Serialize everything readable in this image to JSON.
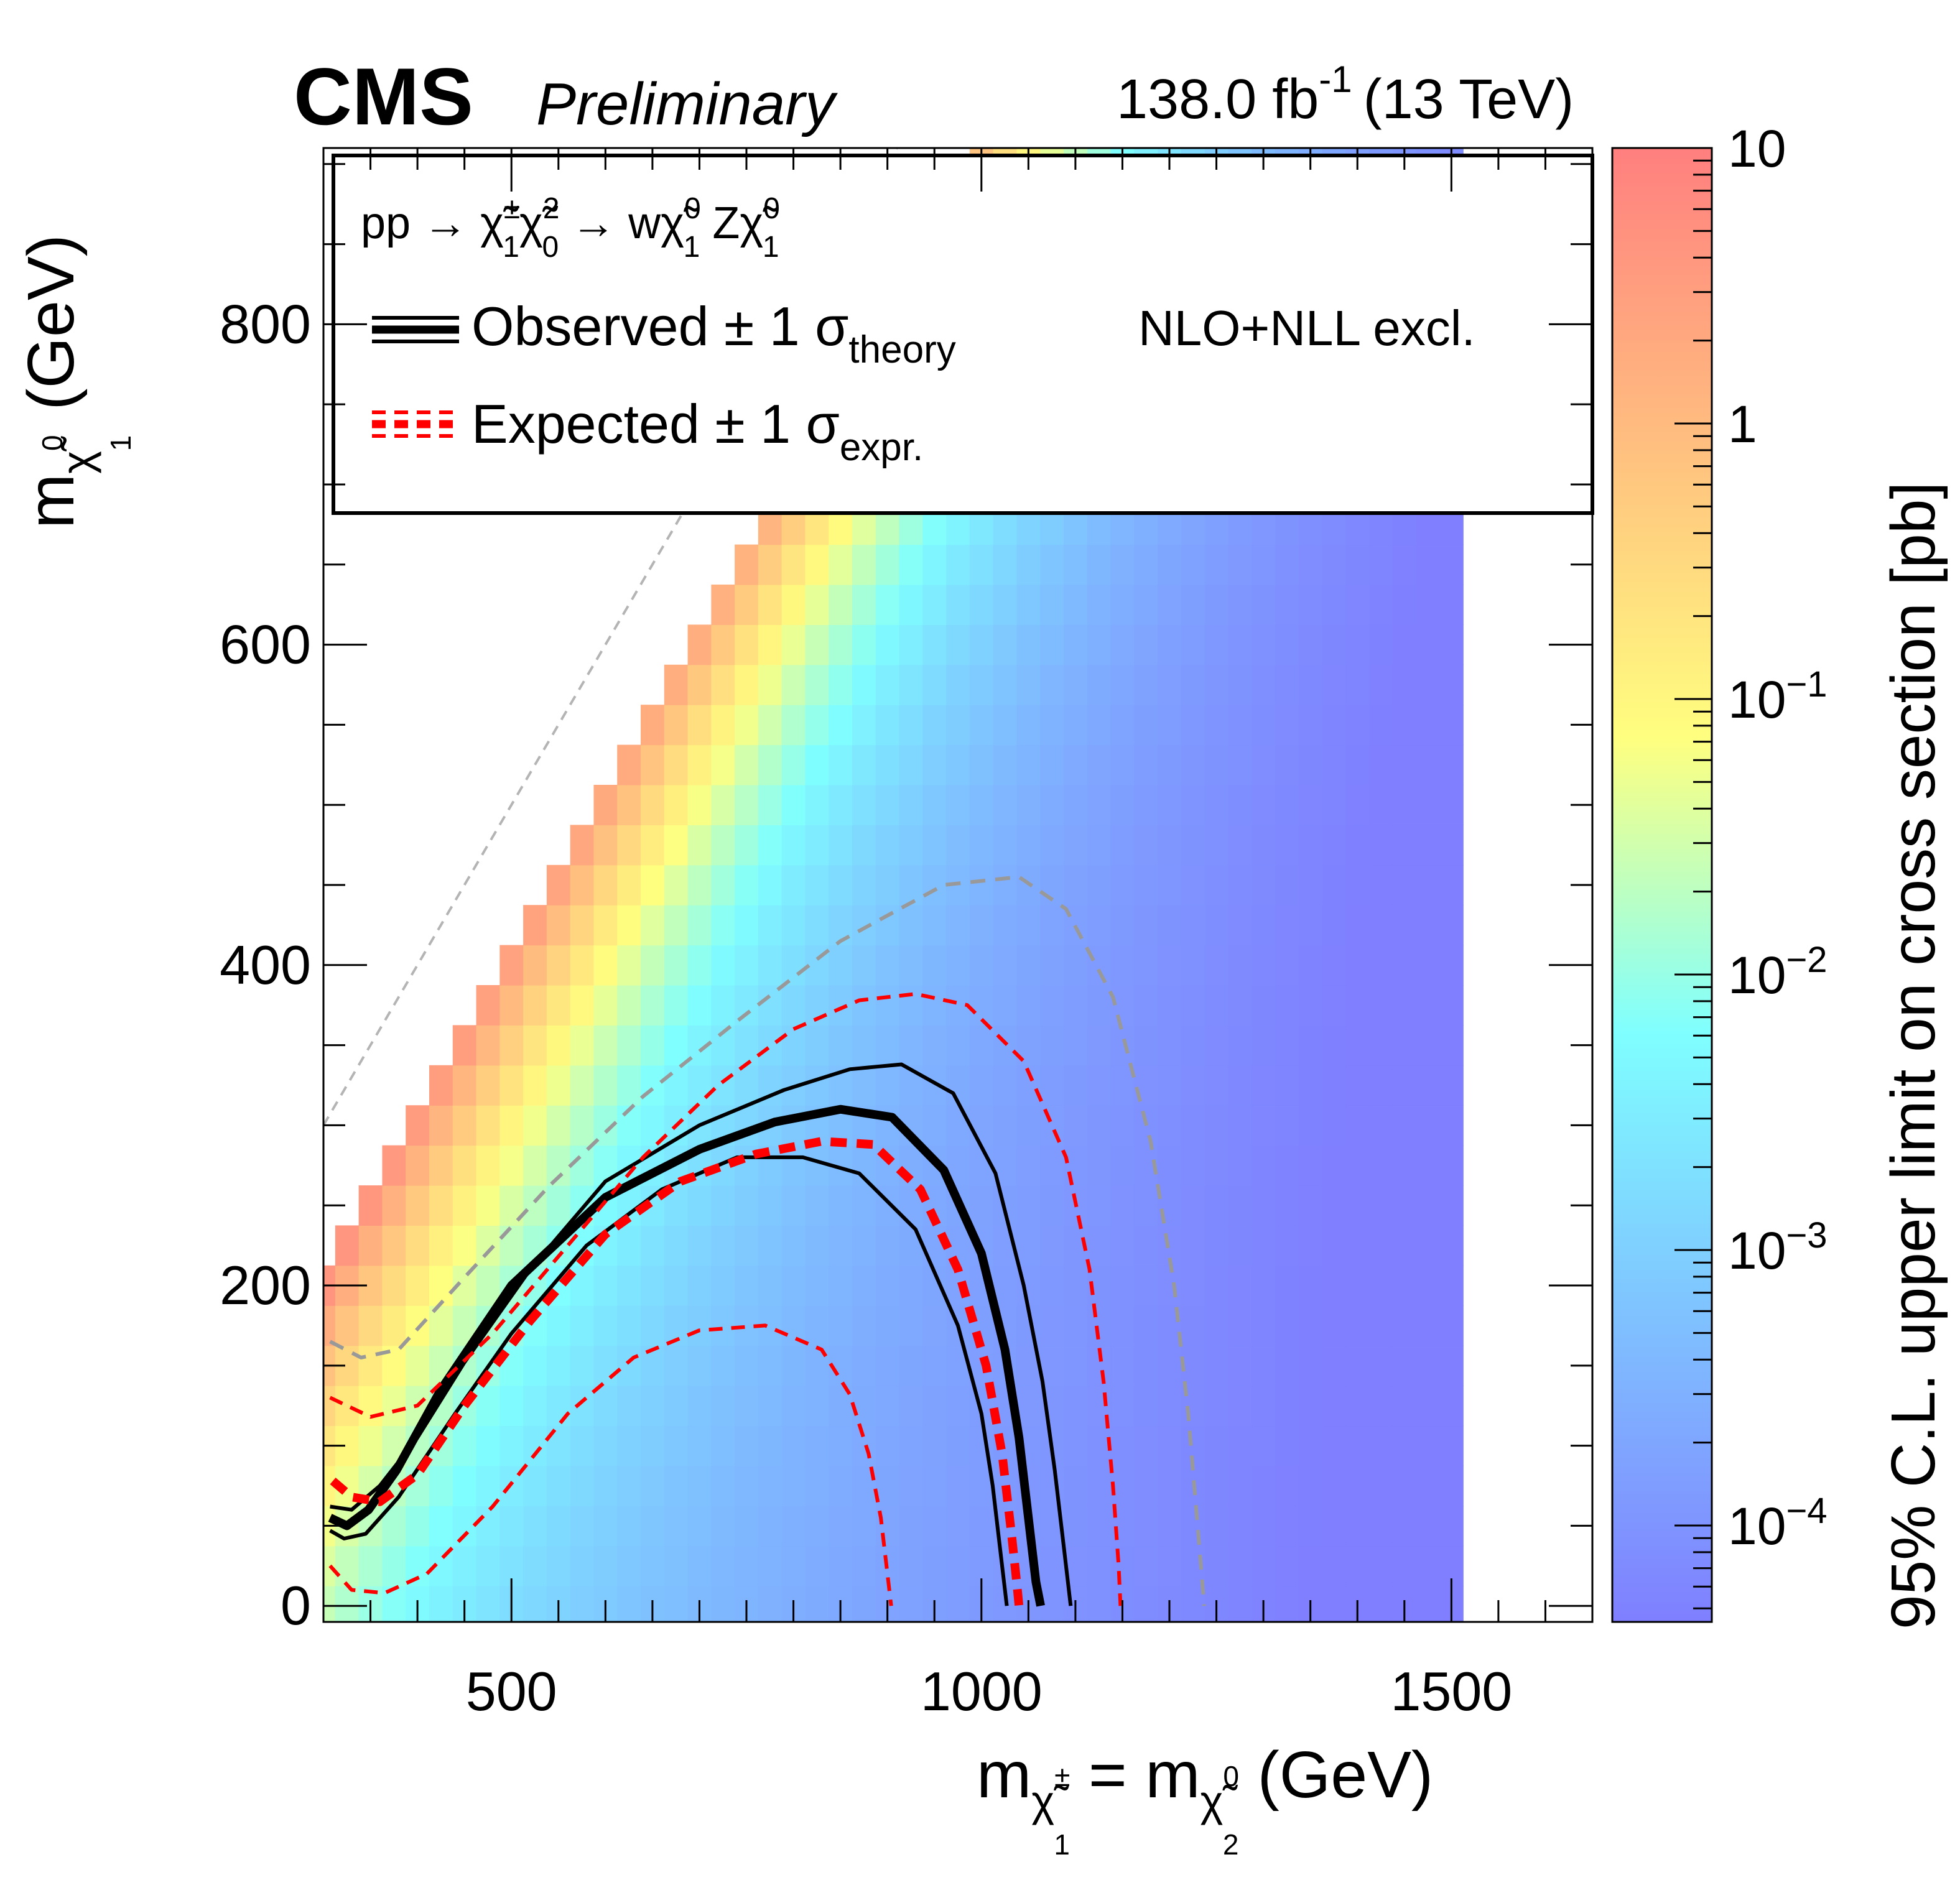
{
  "header": {
    "experiment": "CMS",
    "status": "Preliminary",
    "lumi_value": "138.0 fb",
    "lumi_exp": "-1",
    "energy": "(13 TeV)"
  },
  "legend": {
    "process": {
      "pp": "pp",
      "arrow": "→",
      "chipm": "χ̃",
      "chipm_sup": "±",
      "chipm_sub": "1",
      "chi2": "χ̃",
      "chi2_sup": "2",
      "chi2_sub": "0",
      "w": "w",
      "lsp": "χ̃",
      "lsp_sup": "0",
      "lsp_sub": "1",
      "z": "Z"
    },
    "observed_label": "Observed ± 1 σ",
    "observed_sub": "theory",
    "expected_label": "Expected ± 1 σ",
    "expected_sub": "expr.",
    "xsec_note": "NLO+NLL excl."
  },
  "axes": {
    "x": {
      "m": "m",
      "sub1": "χ̃",
      "sub1_sup": "±",
      "sub1_sub": "1",
      "eq": "= m",
      "sub2": "χ̃",
      "sub2_sup": "0",
      "sub2_sub": "2",
      "unit": "(GeV)"
    },
    "y": {
      "m": "m",
      "sub": "χ̃",
      "sub_sup": "0",
      "sub_sub": "1",
      "unit": "(GeV)"
    },
    "z": {
      "title": "95% C.L. upper limit on cross section [pb]"
    }
  },
  "colors": {
    "observed": "#000000",
    "expected": "#ff0000",
    "xsec_band": "#999999",
    "diagonal": "#b4b4b4",
    "palette": [
      "#7f7fff",
      "#7fbfff",
      "#7fffff",
      "#ffff7f",
      "#ffbf7f",
      "#ff7f7f"
    ]
  },
  "chart_data": {
    "type": "heatmap",
    "title": "pp → χ̃±1 χ̃20 → W χ̃01 Z χ̃01",
    "xlabel": "m(χ̃±1) = m(χ̃02) (GeV)",
    "ylabel": "m(χ̃01) (GeV)",
    "zlabel": "95% C.L. upper limit on cross section [pb]",
    "xlim": [
      300,
      1650
    ],
    "ylim": [
      -10,
      910
    ],
    "zlim_log10": [
      -4.35,
      1.0
    ],
    "x_ticks": [
      500,
      1000,
      1500
    ],
    "y_ticks": [
      0,
      200,
      400,
      600,
      800
    ],
    "z_ticks": [
      {
        "base": "10",
        "exp": "",
        "log10": 1
      },
      {
        "base": "1",
        "exp": "",
        "log10": 0
      },
      {
        "base": "10",
        "exp": "−1",
        "log10": -1
      },
      {
        "base": "10",
        "exp": "−2",
        "log10": -2
      },
      {
        "base": "10",
        "exp": "−3",
        "log10": -3
      },
      {
        "base": "10",
        "exp": "−4",
        "log10": -4
      }
    ],
    "grid": {
      "x_start": 300,
      "x_end": 1500,
      "x_step": 25,
      "y_start": 0,
      "y_step": 25,
      "max_y_offset": 100,
      "model": "log10 limit ≈ 0.65 − 3.8·(1−exp(−(mC−mLSP−100)/220)) − 0.00115·(mC−300)"
    },
    "diagonal": {
      "x": [
        300,
        1000
      ],
      "y": [
        300,
        1000
      ]
    },
    "series": [
      {
        "name": "Observed",
        "role": "observed-nominal",
        "x": [
          307,
          325,
          348,
          378,
          425,
          500,
          600,
          700,
          780,
          850,
          905,
          960,
          1000,
          1025,
          1040,
          1050,
          1058,
          1063
        ],
        "y": [
          55,
          50,
          60,
          85,
          135,
          200,
          255,
          285,
          302,
          310,
          305,
          272,
          220,
          160,
          105,
          55,
          15,
          0
        ]
      },
      {
        "name": "Observed +1σ theory",
        "role": "observed-up",
        "x": [
          307,
          330,
          360,
          400,
          450,
          520,
          600,
          700,
          790,
          860,
          915,
          970,
          1015,
          1045,
          1065,
          1078,
          1088,
          1095
        ],
        "y": [
          62,
          60,
          75,
          105,
          152,
          210,
          265,
          300,
          322,
          335,
          338,
          320,
          270,
          200,
          140,
          85,
          35,
          0
        ]
      },
      {
        "name": "Observed −1σ theory",
        "role": "observed-down",
        "x": [
          307,
          322,
          345,
          380,
          440,
          500,
          580,
          660,
          740,
          810,
          870,
          930,
          975,
          1000,
          1012,
          1020,
          1025,
          1027
        ],
        "y": [
          47,
          42,
          45,
          68,
          120,
          170,
          225,
          260,
          280,
          280,
          270,
          235,
          175,
          120,
          75,
          35,
          10,
          0
        ]
      },
      {
        "name": "Expected",
        "role": "expected-nominal",
        "x": [
          310,
          330,
          360,
          400,
          450,
          520,
          600,
          680,
          760,
          830,
          885,
          935,
          975,
          1005,
          1022,
          1032,
          1038,
          1040
        ],
        "y": [
          78,
          68,
          65,
          82,
          125,
          178,
          232,
          265,
          282,
          290,
          288,
          260,
          210,
          150,
          95,
          45,
          12,
          0
        ]
      },
      {
        "name": "Expected +1σ expr.",
        "role": "expected-up",
        "x": [
          307,
          350,
          400,
          480,
          560,
          640,
          720,
          800,
          870,
          930,
          985,
          1045,
          1090,
          1115,
          1130,
          1140,
          1146,
          1148
        ],
        "y": [
          130,
          118,
          125,
          170,
          225,
          280,
          325,
          360,
          378,
          382,
          375,
          340,
          280,
          210,
          140,
          75,
          25,
          0
        ]
      },
      {
        "name": "Expected −1σ expr.",
        "role": "expected-down",
        "x": [
          307,
          330,
          365,
          410,
          480,
          560,
          630,
          700,
          770,
          830,
          860,
          880,
          893,
          900,
          904
        ],
        "y": [
          25,
          10,
          8,
          20,
          62,
          120,
          155,
          172,
          175,
          160,
          132,
          95,
          55,
          20,
          0
        ]
      },
      {
        "name": "NLO+NLL excl.",
        "role": "xsec-contour",
        "x": [
          307,
          340,
          380,
          450,
          540,
          640,
          740,
          850,
          960,
          1040,
          1090,
          1140,
          1180,
          1205,
          1220,
          1230,
          1237
        ],
        "y": [
          165,
          155,
          160,
          205,
          262,
          318,
          365,
          415,
          450,
          455,
          435,
          380,
          290,
          200,
          120,
          50,
          0
        ]
      }
    ]
  }
}
